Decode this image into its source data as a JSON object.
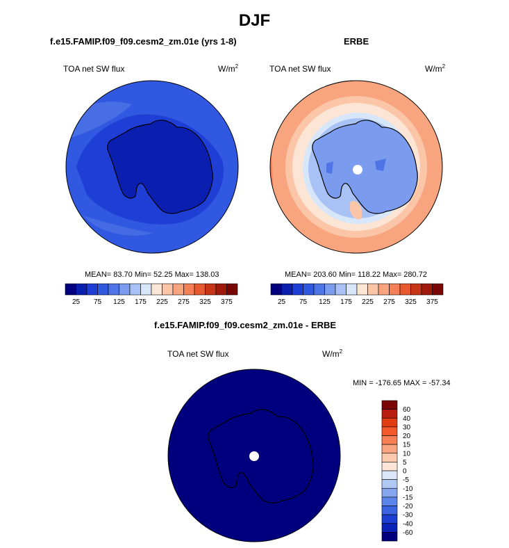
{
  "figure": {
    "title": "DJF"
  },
  "panels": {
    "model": {
      "title": "f.e15.FAMIP.f09_f09.cesm2_zm.01e (yrs 1-8)",
      "variable": "TOA net SW flux",
      "units_base": "W/m",
      "units_exp": "2",
      "stats": "MEAN= 83.70  Min= 52.25  Max= 138.03",
      "colorbar_labels": [
        "25",
        "75",
        "125",
        "175",
        "225",
        "275",
        "325",
        "375"
      ]
    },
    "obs": {
      "title": "ERBE",
      "variable": "TOA net SW flux",
      "units_base": "W/m",
      "units_exp": "2",
      "stats": "MEAN= 203.60  Min= 118.22  Max= 280.72",
      "colorbar_labels": [
        "25",
        "75",
        "125",
        "175",
        "225",
        "275",
        "325",
        "375"
      ]
    },
    "diff": {
      "title": "f.e15.FAMIP.f09_f09.cesm2_zm.01e - ERBE",
      "variable": "TOA net SW flux",
      "units_base": "W/m",
      "units_exp": "2",
      "stats": "MIN = -176.65 MAX = -57.34",
      "colorbar_labels": [
        "60",
        "40",
        "30",
        "20",
        "15",
        "10",
        "5",
        "0",
        "-5",
        "-10",
        "-15",
        "-20",
        "-30",
        "-40",
        "-60"
      ]
    }
  },
  "colors": {
    "abs_scale": [
      "#00007f",
      "#0a1eb0",
      "#1e3ed6",
      "#3158e0",
      "#4f74e6",
      "#7a9bee",
      "#a8c2f5",
      "#d8e6fa",
      "#fde5d6",
      "#fbc6a8",
      "#f8a47e",
      "#f57f56",
      "#e85a2f",
      "#c83418",
      "#a01a0c",
      "#7a0605"
    ],
    "diff_scale": [
      "#7a0605",
      "#b81c0e",
      "#e23c12",
      "#f3582a",
      "#f77e55",
      "#f9a581",
      "#fbc9ac",
      "#fde6d8",
      "#dce8fa",
      "#b1c8f5",
      "#86a6ef",
      "#5d84e8",
      "#3b62e0",
      "#1c3ed3",
      "#0a22b5",
      "#00007f"
    ]
  }
}
